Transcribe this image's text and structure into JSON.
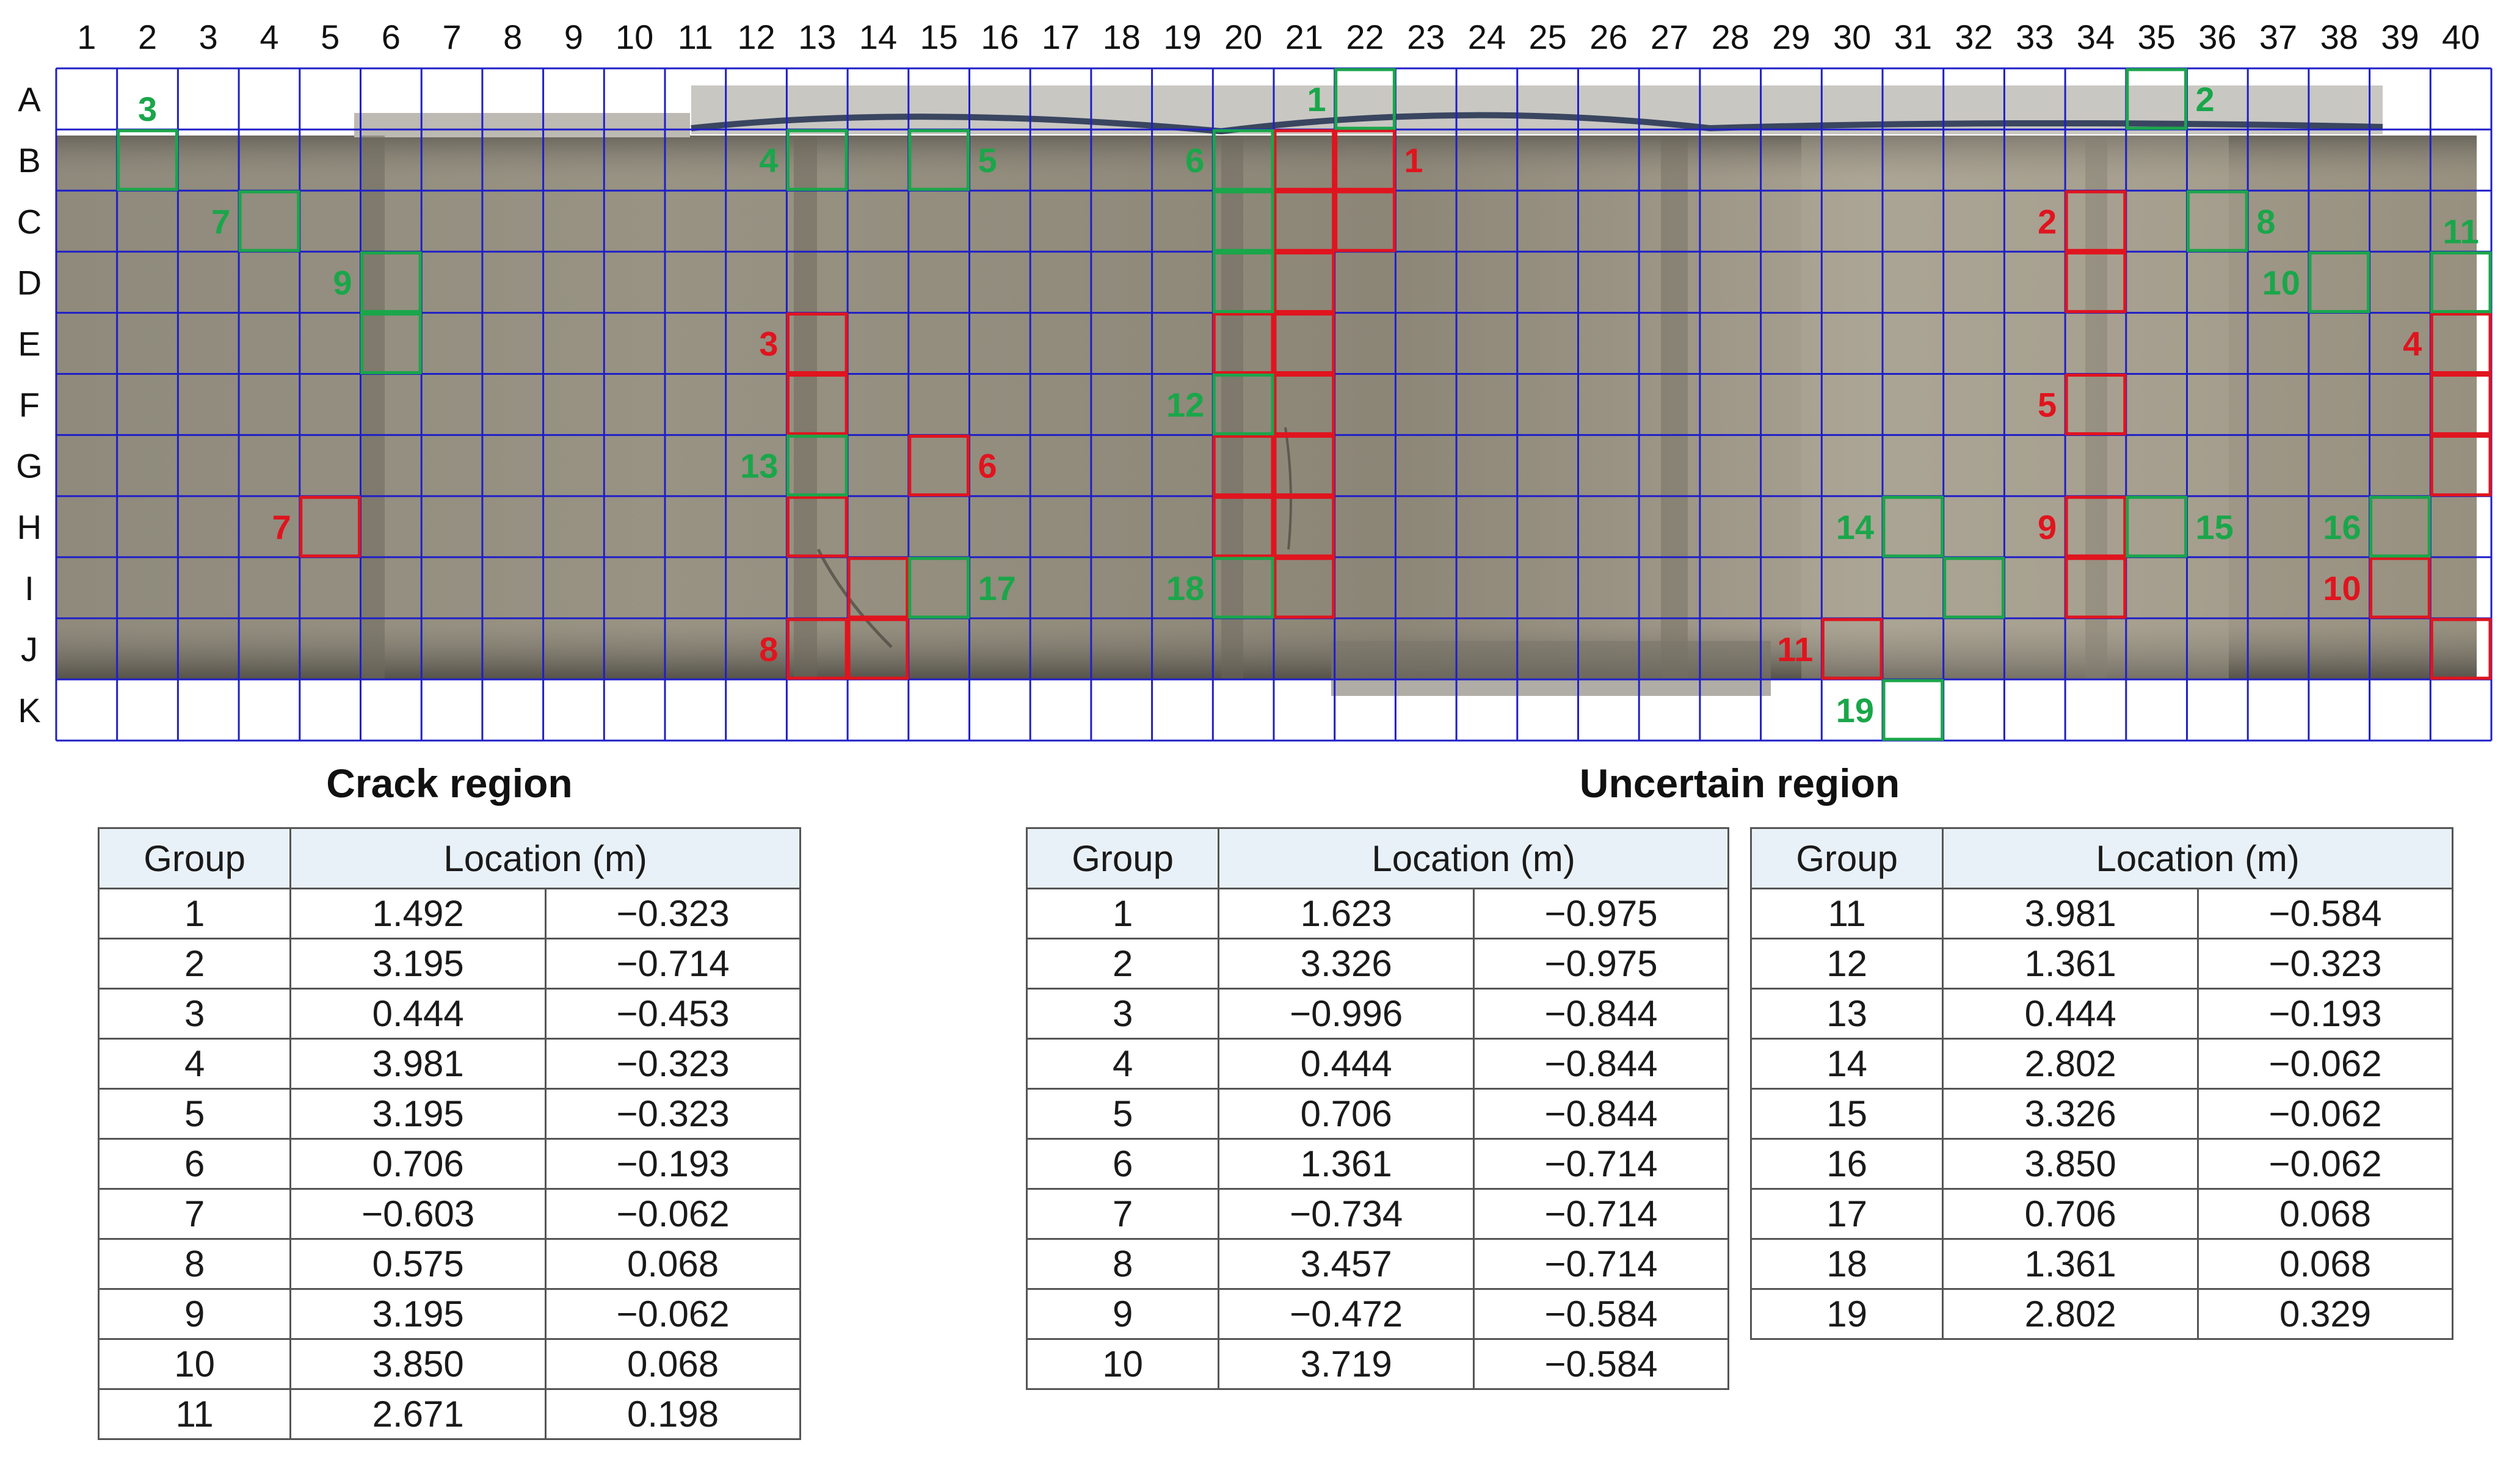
{
  "columns": [
    "1",
    "2",
    "3",
    "4",
    "5",
    "6",
    "7",
    "8",
    "9",
    "10",
    "11",
    "12",
    "13",
    "14",
    "15",
    "16",
    "17",
    "18",
    "19",
    "20",
    "21",
    "22",
    "23",
    "24",
    "25",
    "26",
    "27",
    "28",
    "29",
    "30",
    "31",
    "32",
    "33",
    "34",
    "35",
    "36",
    "37",
    "38",
    "39",
    "40"
  ],
  "rows": [
    "A",
    "B",
    "C",
    "D",
    "E",
    "F",
    "G",
    "H",
    "I",
    "J",
    "K"
  ],
  "colors": {
    "grid": "#1f1fc8",
    "crack": "#e0141e",
    "uncertain": "#1aa64a",
    "header_fill": "#e9f1f8"
  },
  "crack_boxes": [
    {
      "label": "1",
      "cells": [
        "22B",
        "22C"
      ]
    },
    {
      "label": "2",
      "cells": [
        "34C",
        "34D"
      ]
    },
    {
      "label": "3",
      "cells": [
        "13E",
        "13F"
      ]
    },
    {
      "label": "4",
      "cells": [
        "40E",
        "40F",
        "40G"
      ]
    },
    {
      "label": "5",
      "cells": [
        "34F"
      ]
    },
    {
      "label": "6",
      "cells": [
        "15G"
      ]
    },
    {
      "label": "7",
      "cells": [
        "5H"
      ]
    },
    {
      "label": "8",
      "cells": [
        "13J",
        "14J",
        "14I"
      ]
    },
    {
      "label": "9",
      "cells": [
        "34H",
        "34I"
      ]
    },
    {
      "label": "10",
      "cells": [
        "39I",
        "40J"
      ]
    },
    {
      "label": "11",
      "cells": [
        "30J"
      ]
    },
    {
      "label": "",
      "cells": [
        "13H"
      ]
    },
    {
      "label": "",
      "cells": [
        "21B",
        "21C",
        "21D",
        "21E",
        "21F",
        "21G",
        "21H",
        "21I"
      ]
    },
    {
      "label": "",
      "cells": [
        "20E",
        "20G",
        "20H"
      ]
    }
  ],
  "uncertain_boxes": [
    {
      "label": "1",
      "cells": [
        "22A"
      ]
    },
    {
      "label": "2",
      "cells": [
        "35A"
      ]
    },
    {
      "label": "3",
      "cells": [
        "2B"
      ]
    },
    {
      "label": "4",
      "cells": [
        "13B"
      ]
    },
    {
      "label": "5",
      "cells": [
        "15B"
      ]
    },
    {
      "label": "6",
      "cells": [
        "20B",
        "20C"
      ]
    },
    {
      "label": "7",
      "cells": [
        "4C"
      ]
    },
    {
      "label": "8",
      "cells": [
        "36C"
      ]
    },
    {
      "label": "9",
      "cells": [
        "6D",
        "6E"
      ]
    },
    {
      "label": "10",
      "cells": [
        "38D"
      ]
    },
    {
      "label": "11",
      "cells": [
        "40D"
      ]
    },
    {
      "label": "12",
      "cells": [
        "20F"
      ]
    },
    {
      "label": "13",
      "cells": [
        "13G"
      ]
    },
    {
      "label": "14",
      "cells": [
        "31H"
      ]
    },
    {
      "label": "15",
      "cells": [
        "35H"
      ]
    },
    {
      "label": "16",
      "cells": [
        "39H"
      ]
    },
    {
      "label": "17",
      "cells": [
        "15I"
      ]
    },
    {
      "label": "18",
      "cells": [
        "20I"
      ]
    },
    {
      "label": "19",
      "cells": [
        "31K"
      ]
    },
    {
      "label": "",
      "cells": [
        "20D"
      ]
    },
    {
      "label": "",
      "cells": [
        "32I"
      ]
    }
  ],
  "crack_table": {
    "title": "Crack region",
    "header_group": "Group",
    "header_location": "Location (m)",
    "rows": [
      [
        "1",
        "1.492",
        "−0.323"
      ],
      [
        "2",
        "3.195",
        "−0.714"
      ],
      [
        "3",
        "0.444",
        "−0.453"
      ],
      [
        "4",
        "3.981",
        "−0.323"
      ],
      [
        "5",
        "3.195",
        "−0.323"
      ],
      [
        "6",
        "0.706",
        "−0.193"
      ],
      [
        "7",
        "−0.603",
        "−0.062"
      ],
      [
        "8",
        "0.575",
        "0.068"
      ],
      [
        "9",
        "3.195",
        "−0.062"
      ],
      [
        "10",
        "3.850",
        "0.068"
      ],
      [
        "11",
        "2.671",
        "0.198"
      ]
    ]
  },
  "uncertain_table": {
    "title": "Uncertain region",
    "header_group": "Group",
    "header_location": "Location (m)",
    "rows_left": [
      [
        "1",
        "1.623",
        "−0.975"
      ],
      [
        "2",
        "3.326",
        "−0.975"
      ],
      [
        "3",
        "−0.996",
        "−0.844"
      ],
      [
        "4",
        "0.444",
        "−0.844"
      ],
      [
        "5",
        "0.706",
        "−0.844"
      ],
      [
        "6",
        "1.361",
        "−0.714"
      ],
      [
        "7",
        "−0.734",
        "−0.714"
      ],
      [
        "8",
        "3.457",
        "−0.714"
      ],
      [
        "9",
        "−0.472",
        "−0.584"
      ],
      [
        "10",
        "3.719",
        "−0.584"
      ]
    ],
    "rows_right": [
      [
        "11",
        "3.981",
        "−0.584"
      ],
      [
        "12",
        "1.361",
        "−0.323"
      ],
      [
        "13",
        "0.444",
        "−0.193"
      ],
      [
        "14",
        "2.802",
        "−0.062"
      ],
      [
        "15",
        "3.326",
        "−0.062"
      ],
      [
        "16",
        "3.850",
        "−0.062"
      ],
      [
        "17",
        "0.706",
        "0.068"
      ],
      [
        "18",
        "1.361",
        "0.068"
      ],
      [
        "19",
        "2.802",
        "0.329"
      ]
    ]
  }
}
